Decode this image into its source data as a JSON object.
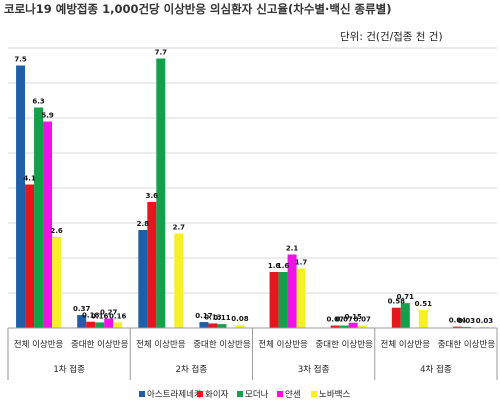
{
  "chart_data": {
    "type": "bar",
    "title": "코로나19 예방접종 1,000건당 이상반응 의심환자 신고율(차수별·백신 종류별)",
    "unit_note": "단위: 건(건/접종 천 건)",
    "groups": [
      "1차 접종",
      "2차 접종",
      "3차 접종",
      "4차 접종"
    ],
    "subcategories": [
      "전체 이상반응",
      "중대한 이상반응"
    ],
    "ylim": [
      0,
      8
    ],
    "grid": true,
    "legend_position": "bottom",
    "series": [
      {
        "name": "아스트라제네카",
        "color": "#1F5FA8",
        "values": [
          [
            7.5,
            0.37
          ],
          [
            2.8,
            0.17
          ],
          [
            null,
            null
          ],
          [
            null,
            null
          ]
        ]
      },
      {
        "name": "화이자",
        "color": "#E3171C",
        "values": [
          [
            4.1,
            0.18
          ],
          [
            3.6,
            0.13
          ],
          [
            1.6,
            0.07
          ],
          [
            0.58,
            0.04
          ]
        ]
      },
      {
        "name": "모더나",
        "color": "#14A04A",
        "values": [
          [
            6.3,
            0.16
          ],
          [
            7.7,
            0.11
          ],
          [
            1.6,
            0.07
          ],
          [
            0.71,
            0.03
          ]
        ]
      },
      {
        "name": "얀센",
        "color": "#EE14E6",
        "values": [
          [
            5.9,
            0.27
          ],
          [
            null,
            null
          ],
          [
            2.1,
            0.15
          ],
          [
            null,
            null
          ]
        ]
      },
      {
        "name": "노바백스",
        "color": "#F5F028",
        "values": [
          [
            2.6,
            0.16
          ],
          [
            2.7,
            0.08
          ],
          [
            1.7,
            0.07
          ],
          [
            0.51,
            0.03
          ]
        ]
      }
    ]
  }
}
